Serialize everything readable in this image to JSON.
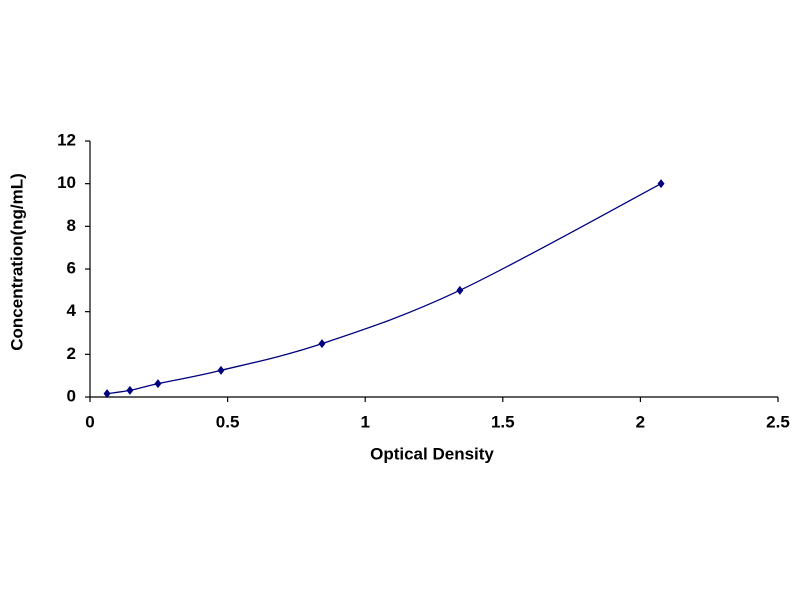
{
  "chart_data": {
    "type": "scatter",
    "x_label": "Optical Density",
    "y_label": "Concentration(ng/mL)",
    "series": [
      {
        "color": "#000080",
        "x": [
          0.062,
          0.145,
          0.247,
          0.476,
          0.843,
          1.344,
          2.075
        ],
        "values": [
          0.156,
          0.312,
          0.625,
          1.25,
          2.5,
          5,
          10
        ]
      }
    ],
    "smooth_line": true,
    "xlim": [
      0,
      2.5
    ],
    "xticks": [
      0,
      0.5,
      1,
      1.5,
      2,
      2.5
    ],
    "ylim": [
      0,
      12
    ],
    "yticks": [
      0,
      2,
      4,
      6,
      8,
      10,
      12
    ],
    "grid": false
  }
}
